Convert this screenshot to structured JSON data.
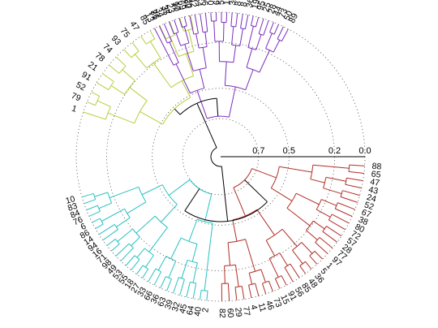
{
  "chart_data": {
    "type": "dendrogram",
    "layout": "polar",
    "radial_axis": {
      "ticks": [
        0.7,
        0.5,
        0.2,
        0.0
      ],
      "tick_labels": [
        "0.7",
        "0.5",
        "0.2",
        "0.0"
      ],
      "range": [
        0.95,
        0.0
      ]
    },
    "grid": true,
    "clusters": [
      {
        "color": "#b5cf3a",
        "leaves": [
          "20",
          "17",
          "37",
          "76",
          "85",
          "47",
          "75",
          "93",
          "74",
          "78",
          "21",
          "91",
          "52",
          "79",
          "1"
        ]
      },
      {
        "color": "#7b2fbf",
        "leaves": [
          "89",
          "50",
          "73",
          "44",
          "28",
          "25",
          "95",
          "19",
          "36",
          "8",
          "87",
          "30",
          "19",
          "56",
          "9",
          "100",
          "96",
          "54",
          "42",
          "62",
          "69",
          "90",
          "23",
          "35",
          "34",
          "81",
          "13"
        ]
      },
      {
        "color": "#29c1c1",
        "leaves": [
          "10",
          "83",
          "84",
          "76",
          "6",
          "86",
          "14",
          "94",
          "16",
          "71",
          "98",
          "49",
          "53",
          "55",
          "18",
          "27",
          "33",
          "66",
          "36",
          "63",
          "39",
          "32",
          "45",
          "64",
          "40",
          "2"
        ]
      },
      {
        "color": "#b03028",
        "leaves": [
          "82",
          "60",
          "29",
          "77",
          "4",
          "11",
          "46",
          "73",
          "15",
          "91",
          "56",
          "85",
          "48",
          "36",
          "5",
          "1",
          "97",
          "77",
          "28",
          "57",
          "72",
          "80",
          "38",
          "67",
          "52",
          "24",
          "43",
          "47",
          "65",
          "88"
        ]
      }
    ]
  }
}
